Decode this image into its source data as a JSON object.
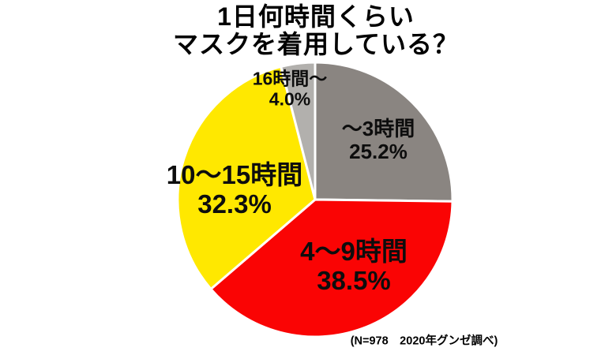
{
  "chart_data": {
    "type": "pie",
    "title": "1日何時間くらいマスクを着用している？",
    "title_lines": [
      "1日何時間くらい",
      "マスクを着用している？"
    ],
    "footnote": "(N=978　2020年グンゼ調べ)",
    "sample_size": "N=978",
    "source": "2020年グンゼ調べ",
    "start_angle_deg": 0,
    "direction": "clockwise",
    "legend": "none",
    "label_style": "inside",
    "slice_border_color": "#ffffff",
    "slices": [
      {
        "label": "～3時間",
        "pct_label": "25.2%",
        "value": 25.2,
        "color": "#8a8581"
      },
      {
        "label": "4～9時間",
        "pct_label": "38.5%",
        "value": 38.5,
        "color": "#fa0404"
      },
      {
        "label": "10～15時間",
        "pct_label": "32.3%",
        "value": 32.3,
        "color": "#ffe800"
      },
      {
        "label": "16時間～",
        "pct_label": "4.0%",
        "value": 4.0,
        "color": "#b2b0ad"
      }
    ]
  },
  "colors": {
    "background": "#ffffff",
    "title_text": "#000000",
    "label_text": "#0d0d0d"
  }
}
